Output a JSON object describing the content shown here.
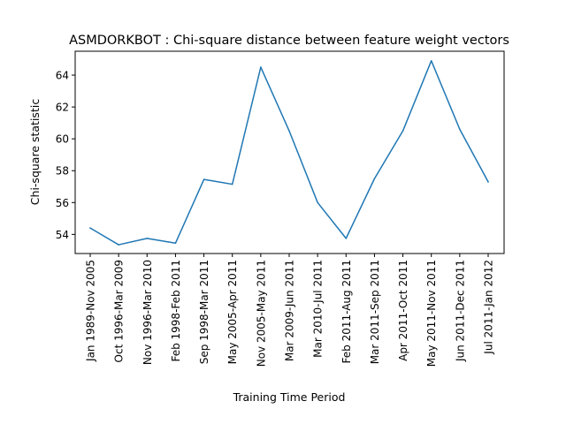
{
  "chart_data": {
    "type": "line",
    "title": "ASMDORKBOT : Chi-square distance between feature weight vectors",
    "xlabel": "Training Time Period",
    "ylabel": "Chi-square statistic",
    "categories": [
      "Jan 1989-Nov 2005",
      "Oct 1996-Mar 2009",
      "Nov 1996-Mar 2010",
      "Feb 1998-Feb 2011",
      "Sep 1998-Mar 2011",
      "May 2005-Apr 2011",
      "Nov 2005-May 2011",
      "Mar 2009-Jun 2011",
      "Mar 2010-Jul 2011",
      "Feb 2011-Aug 2011",
      "Mar 2011-Sep 2011",
      "Apr 2011-Oct 2011",
      "May 2011-Nov 2011",
      "Jun 2011-Dec 2011",
      "Jul 2011-Jan 2012"
    ],
    "series": [
      {
        "color": "#1f77b4",
        "values": [
          54.4,
          53.35,
          53.75,
          53.45,
          57.45,
          57.15,
          64.5,
          60.5,
          56.0,
          53.75,
          57.5,
          60.5,
          64.9,
          60.6,
          57.3
        ]
      }
    ],
    "yticks": [
      54,
      56,
      58,
      60,
      62,
      64
    ],
    "ylim": [
      52.8,
      65.5
    ],
    "grid": false,
    "legend": "none"
  }
}
